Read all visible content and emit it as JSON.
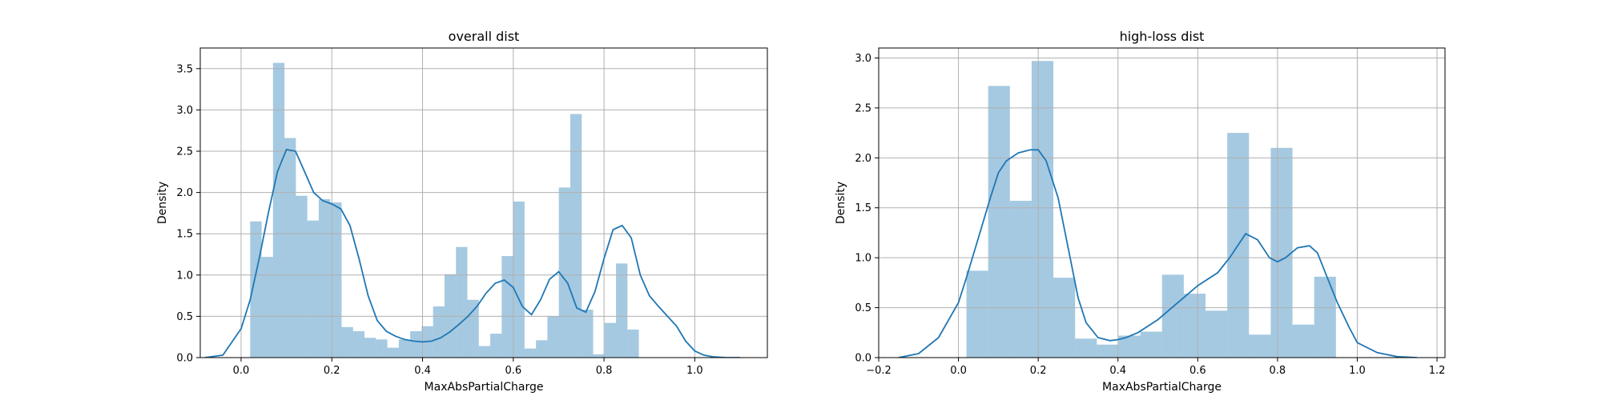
{
  "chart_data": [
    {
      "type": "histogram",
      "title": "overall dist",
      "xlabel": "MaxAbsPartialCharge",
      "ylabel": "Density",
      "xlim": [
        -0.09,
        1.16
      ],
      "ylim": [
        0,
        3.75
      ],
      "xticks": [
        0.0,
        0.2,
        0.4,
        0.6,
        0.8,
        1.0
      ],
      "xtick_labels": [
        "0.0",
        "0.2",
        "0.4",
        "0.6",
        "0.8",
        "1.0"
      ],
      "yticks": [
        0.0,
        0.5,
        1.0,
        1.5,
        2.0,
        2.5,
        3.0,
        3.5
      ],
      "ytick_labels": [
        "0.0",
        "0.5",
        "1.0",
        "1.5",
        "2.0",
        "2.5",
        "3.0",
        "3.5"
      ],
      "grid": true,
      "bin_start": 0.02,
      "bin_width": 0.0252,
      "bin_heights": [
        1.65,
        1.22,
        3.57,
        2.66,
        1.96,
        1.66,
        1.92,
        1.88,
        0.37,
        0.32,
        0.24,
        0.22,
        0.12,
        0.22,
        0.32,
        0.38,
        0.62,
        1.01,
        1.34,
        0.7,
        0.14,
        0.29,
        1.23,
        1.89,
        0.11,
        0.21,
        0.5,
        2.06,
        2.95,
        0.58,
        0.04,
        0.42,
        1.14,
        0.34
      ],
      "kde": {
        "x": [
          -0.08,
          -0.04,
          0.0,
          0.02,
          0.04,
          0.06,
          0.08,
          0.1,
          0.12,
          0.14,
          0.16,
          0.18,
          0.2,
          0.22,
          0.24,
          0.26,
          0.28,
          0.3,
          0.32,
          0.34,
          0.36,
          0.38,
          0.4,
          0.42,
          0.44,
          0.46,
          0.48,
          0.5,
          0.52,
          0.54,
          0.56,
          0.58,
          0.6,
          0.62,
          0.64,
          0.66,
          0.68,
          0.7,
          0.72,
          0.74,
          0.76,
          0.78,
          0.8,
          0.82,
          0.84,
          0.86,
          0.88,
          0.9,
          0.92,
          0.94,
          0.96,
          0.98,
          1.0,
          1.02,
          1.04,
          1.07,
          1.1
        ],
        "y": [
          0.0,
          0.03,
          0.35,
          0.7,
          1.2,
          1.75,
          2.25,
          2.52,
          2.5,
          2.25,
          2.0,
          1.9,
          1.86,
          1.8,
          1.6,
          1.2,
          0.75,
          0.45,
          0.32,
          0.26,
          0.22,
          0.2,
          0.19,
          0.2,
          0.24,
          0.31,
          0.4,
          0.5,
          0.62,
          0.78,
          0.9,
          0.94,
          0.85,
          0.62,
          0.52,
          0.7,
          0.95,
          1.04,
          0.9,
          0.6,
          0.55,
          0.8,
          1.2,
          1.55,
          1.6,
          1.45,
          1.0,
          0.75,
          0.62,
          0.5,
          0.38,
          0.2,
          0.08,
          0.03,
          0.01,
          0.0,
          0.0
        ]
      }
    },
    {
      "type": "histogram",
      "title": "high-loss dist",
      "xlabel": "MaxAbsPartialCharge",
      "ylabel": "Density",
      "xlim": [
        -0.2,
        1.22
      ],
      "ylim": [
        0,
        3.1
      ],
      "xticks": [
        -0.2,
        0.0,
        0.2,
        0.4,
        0.6,
        0.8,
        1.0,
        1.2
      ],
      "xtick_labels": [
        "−0.2",
        "0.0",
        "0.2",
        "0.4",
        "0.6",
        "0.8",
        "1.0",
        "1.2"
      ],
      "yticks": [
        0.0,
        0.5,
        1.0,
        1.5,
        2.0,
        2.5,
        3.0
      ],
      "ytick_labels": [
        "0.0",
        "0.5",
        "1.0",
        "1.5",
        "2.0",
        "2.5",
        "3.0"
      ],
      "grid": true,
      "bin_start": 0.02,
      "bin_width": 0.0545,
      "bin_heights": [
        0.87,
        2.72,
        1.57,
        2.97,
        0.8,
        0.19,
        0.13,
        0.22,
        0.26,
        0.83,
        0.64,
        0.47,
        2.25,
        0.23,
        2.1,
        0.33,
        0.81
      ],
      "kde": {
        "x": [
          -0.15,
          -0.1,
          -0.05,
          0.0,
          0.02,
          0.05,
          0.08,
          0.1,
          0.12,
          0.15,
          0.18,
          0.2,
          0.22,
          0.25,
          0.28,
          0.3,
          0.32,
          0.35,
          0.38,
          0.4,
          0.42,
          0.45,
          0.5,
          0.55,
          0.6,
          0.65,
          0.68,
          0.72,
          0.75,
          0.78,
          0.8,
          0.82,
          0.85,
          0.88,
          0.9,
          0.92,
          0.95,
          0.98,
          1.0,
          1.05,
          1.1,
          1.15
        ],
        "y": [
          0.0,
          0.04,
          0.2,
          0.55,
          0.8,
          1.2,
          1.6,
          1.85,
          1.97,
          2.05,
          2.08,
          2.08,
          1.97,
          1.6,
          1.0,
          0.6,
          0.35,
          0.2,
          0.17,
          0.18,
          0.2,
          0.25,
          0.38,
          0.55,
          0.72,
          0.85,
          1.0,
          1.24,
          1.18,
          1.0,
          0.96,
          1.0,
          1.1,
          1.12,
          1.05,
          0.85,
          0.55,
          0.3,
          0.15,
          0.05,
          0.01,
          0.0
        ]
      }
    }
  ]
}
